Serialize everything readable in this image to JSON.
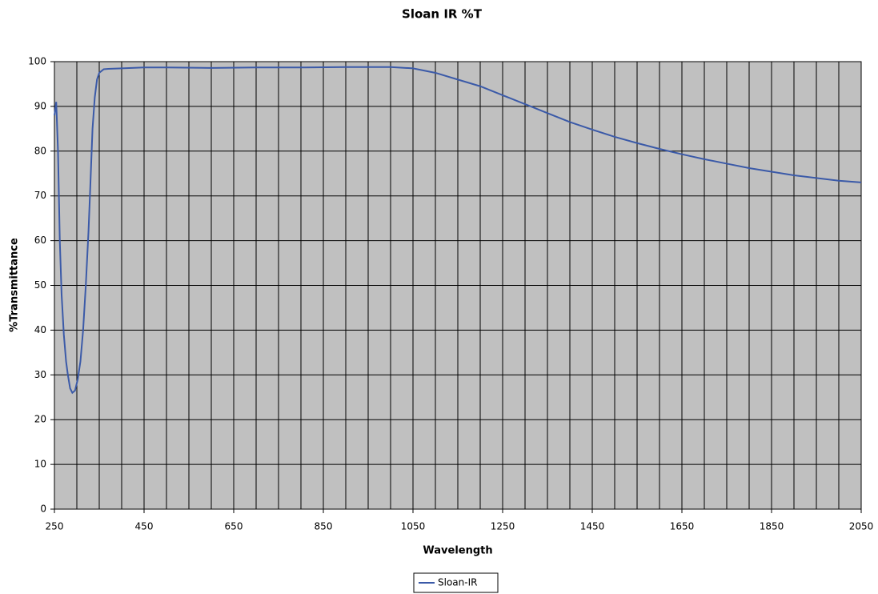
{
  "chart_data": {
    "type": "line",
    "title": "Sloan IR %T",
    "xlabel": "Wavelength",
    "ylabel": "%Transmittance",
    "x": [
      250,
      254,
      258,
      262,
      266,
      271,
      276,
      280,
      285,
      290,
      296,
      302,
      308,
      314,
      320,
      326,
      330,
      335,
      340,
      345,
      350,
      360,
      370,
      400,
      450,
      500,
      600,
      700,
      800,
      900,
      1000,
      1050,
      1100,
      1150,
      1200,
      1250,
      1300,
      1350,
      1400,
      1450,
      1500,
      1550,
      1600,
      1650,
      1700,
      1750,
      1800,
      1850,
      1900,
      1950,
      2000,
      2050
    ],
    "series": [
      {
        "name": "Sloan-IR",
        "color": "#3b5aa8",
        "values": [
          88,
          91,
          80,
          60,
          48,
          39,
          33,
          30,
          27,
          26,
          26.5,
          29,
          33,
          40,
          50,
          62,
          72,
          85,
          92,
          96,
          97.5,
          98.3,
          98.4,
          98.5,
          98.7,
          98.7,
          98.6,
          98.7,
          98.7,
          98.8,
          98.8,
          98.5,
          97.5,
          96,
          94.5,
          92.5,
          90.5,
          88.5,
          86.5,
          84.8,
          83.2,
          81.8,
          80.5,
          79.3,
          78.2,
          77.2,
          76.2,
          75.4,
          74.6,
          74,
          73.4,
          73
        ]
      }
    ],
    "xlim": [
      250,
      2050
    ],
    "ylim": [
      0,
      100
    ],
    "xticks": [
      250,
      450,
      650,
      850,
      1050,
      1250,
      1450,
      1650,
      1850,
      2050
    ],
    "xminorticks": [
      250,
      300,
      350,
      400,
      450,
      500,
      550,
      600,
      650,
      700,
      750,
      800,
      850,
      900,
      950,
      1000,
      1050,
      1100,
      1150,
      1200,
      1250,
      1300,
      1350,
      1400,
      1450,
      1500,
      1550,
      1600,
      1650,
      1700,
      1750,
      1800,
      1850,
      1900,
      1950,
      2000,
      2050
    ],
    "yticks": [
      0,
      10,
      20,
      30,
      40,
      50,
      60,
      70,
      80,
      90,
      100
    ],
    "grid": true,
    "plot_background": "#c0c0c0",
    "legend": "bottom"
  }
}
